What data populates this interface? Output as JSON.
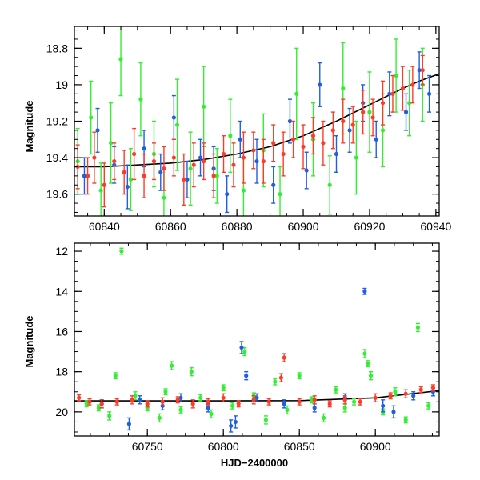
{
  "colors": {
    "green": "#33ee33",
    "blue": "#1f5fe0",
    "red": "#ff3b28",
    "model": "#000000"
  },
  "chart_data": [
    {
      "type": "scatter",
      "title": "",
      "xlabel": "",
      "ylabel": "Magnitude",
      "xlim": [
        60831,
        60941
      ],
      "ylim": [
        19.72,
        18.68
      ],
      "y_inverted": true,
      "x_ticks": [
        60840,
        60860,
        60880,
        60900,
        60920,
        60940
      ],
      "x_tick_labels": [
        "60840",
        "60860",
        "60880",
        "60900",
        "60920",
        "60940"
      ],
      "y_ticks": [
        18.8,
        19.0,
        19.2,
        19.4,
        19.6
      ],
      "y_tick_labels": [
        "18.8",
        "19",
        "19.2",
        "19.4",
        "19.6"
      ],
      "grid": false,
      "legend": "none",
      "model_curve": {
        "x": [
          60831,
          60840,
          60850,
          60860,
          60870,
          60880,
          60890,
          60900,
          60910,
          60920,
          60930,
          60935,
          60941
        ],
        "y": [
          19.45,
          19.45,
          19.44,
          19.43,
          19.41,
          19.38,
          19.34,
          19.28,
          19.2,
          19.11,
          19.02,
          18.98,
          18.94
        ]
      },
      "series": [
        {
          "color": "green",
          "x": [
            60832,
            60836,
            60839,
            60842,
            60845,
            60848,
            60851,
            60855,
            60858,
            60862,
            60866,
            60870,
            60874,
            60878,
            60882,
            60888,
            60893,
            60898,
            60903,
            60908,
            60912,
            60916,
            60920,
            60924,
            60928,
            60932,
            60936
          ],
          "y": [
            19.42,
            19.18,
            19.58,
            19.32,
            18.86,
            19.52,
            19.08,
            19.38,
            19.62,
            19.22,
            19.46,
            19.12,
            19.5,
            19.28,
            19.58,
            19.36,
            19.6,
            19.05,
            19.3,
            19.55,
            19.02,
            19.4,
            19.15,
            19.25,
            18.95,
            19.1,
            19.0
          ],
          "err": [
            0.18,
            0.2,
            0.15,
            0.22,
            0.2,
            0.17,
            0.2,
            0.18,
            0.16,
            0.25,
            0.2,
            0.22,
            0.15,
            0.2,
            0.18,
            0.2,
            0.15,
            0.25,
            0.2,
            0.16,
            0.25,
            0.2,
            0.22,
            0.2,
            0.2,
            0.18,
            0.2
          ]
        },
        {
          "color": "blue",
          "x": [
            60834,
            60838,
            60843,
            60847,
            60852,
            60857,
            60861,
            60865,
            60869,
            60873,
            60877,
            60881,
            60886,
            60891,
            60896,
            60901,
            60905,
            60910,
            60914,
            60918,
            60922,
            60926,
            60931,
            60935,
            60938
          ],
          "y": [
            19.5,
            19.25,
            19.44,
            19.56,
            19.35,
            19.48,
            19.18,
            19.52,
            19.4,
            19.46,
            19.6,
            19.3,
            19.42,
            19.55,
            19.2,
            19.47,
            19.0,
            19.38,
            19.25,
            19.1,
            19.3,
            19.05,
            19.15,
            18.92,
            19.05
          ],
          "err": [
            0.1,
            0.12,
            0.1,
            0.12,
            0.1,
            0.1,
            0.12,
            0.1,
            0.1,
            0.12,
            0.1,
            0.1,
            0.12,
            0.1,
            0.12,
            0.1,
            0.12,
            0.1,
            0.12,
            0.1,
            0.1,
            0.12,
            0.1,
            0.1,
            0.1
          ]
        },
        {
          "color": "red",
          "x": [
            60832,
            60835,
            60837,
            60840,
            60843,
            60846,
            60849,
            60852,
            60855,
            60858,
            60861,
            60864,
            60867,
            60870,
            60873,
            60876,
            60879,
            60882,
            60885,
            60888,
            60891,
            60894,
            60897,
            60900,
            60903,
            60906,
            60909,
            60912,
            60915,
            60918,
            60921,
            60924,
            60927,
            60930,
            60933,
            60936
          ],
          "y": [
            19.45,
            19.5,
            19.4,
            19.55,
            19.42,
            19.48,
            19.38,
            19.5,
            19.42,
            19.46,
            19.4,
            19.52,
            19.44,
            19.42,
            19.5,
            19.38,
            19.44,
            19.4,
            19.36,
            19.42,
            19.32,
            19.38,
            19.3,
            19.34,
            19.28,
            19.32,
            19.25,
            19.2,
            19.22,
            19.15,
            19.18,
            19.1,
            19.05,
            19.02,
            19.0,
            18.92
          ],
          "err": [
            0.12,
            0.1,
            0.14,
            0.12,
            0.1,
            0.12,
            0.14,
            0.12,
            0.1,
            0.12,
            0.1,
            0.14,
            0.12,
            0.1,
            0.12,
            0.1,
            0.12,
            0.14,
            0.1,
            0.12,
            0.1,
            0.12,
            0.1,
            0.12,
            0.1,
            0.12,
            0.1,
            0.12,
            0.1,
            0.12,
            0.1,
            0.12,
            0.1,
            0.12,
            0.1,
            0.08
          ]
        }
      ]
    },
    {
      "type": "scatter",
      "title": "",
      "xlabel": "HJD−2400000",
      "ylabel": "Magnitude",
      "xlim": [
        60702,
        60942
      ],
      "ylim": [
        21.2,
        11.6
      ],
      "y_inverted": true,
      "x_ticks": [
        60750,
        60800,
        60850,
        60900
      ],
      "x_tick_labels": [
        "60750",
        "60800",
        "60850",
        "60900"
      ],
      "y_ticks": [
        12,
        14,
        16,
        18,
        20
      ],
      "y_tick_labels": [
        "12",
        "14",
        "16",
        "18",
        "20"
      ],
      "grid": false,
      "legend": "none",
      "model_curve": {
        "x": [
          60702,
          60750,
          60800,
          60850,
          60900,
          60942
        ],
        "y": [
          19.45,
          19.45,
          19.45,
          19.44,
          19.3,
          18.94
        ]
      },
      "series": [
        {
          "color": "green",
          "x": [
            60710,
            60718,
            60725,
            60729,
            60733,
            60742,
            60750,
            60758,
            60762,
            60766,
            60772,
            60779,
            60785,
            60792,
            60800,
            60806,
            60814,
            60820,
            60828,
            60834,
            60842,
            60850,
            60858,
            60866,
            60874,
            60880,
            60886,
            60893,
            60895,
            60897,
            60905,
            60913,
            60920,
            60928,
            60935
          ],
          "y": [
            19.6,
            19.8,
            20.2,
            18.2,
            12.0,
            19.2,
            19.8,
            20.3,
            19.0,
            17.7,
            19.9,
            18.0,
            19.3,
            20.1,
            18.8,
            19.7,
            17.0,
            19.2,
            20.4,
            18.5,
            19.9,
            18.2,
            19.4,
            20.3,
            18.9,
            19.8,
            19.5,
            17.1,
            17.6,
            18.2,
            20.0,
            19.0,
            20.4,
            15.8,
            19.7
          ],
          "err": [
            0.15,
            0.15,
            0.2,
            0.15,
            0.15,
            0.2,
            0.15,
            0.2,
            0.15,
            0.2,
            0.15,
            0.2,
            0.15,
            0.2,
            0.15,
            0.15,
            0.2,
            0.15,
            0.2,
            0.15,
            0.2,
            0.15,
            0.15,
            0.2,
            0.15,
            0.2,
            0.15,
            0.2,
            0.15,
            0.2,
            0.15,
            0.2,
            0.15,
            0.2,
            0.15
          ]
        },
        {
          "color": "blue",
          "x": [
            60720,
            60738,
            60745,
            60760,
            60772,
            60790,
            60805,
            60808,
            60812,
            60815,
            60822,
            60840,
            60860,
            60880,
            60893,
            60905,
            60912,
            60925,
            60938
          ],
          "y": [
            19.6,
            20.6,
            19.4,
            19.7,
            19.3,
            19.8,
            20.7,
            20.5,
            16.8,
            18.2,
            19.3,
            19.6,
            19.8,
            19.3,
            14.0,
            19.7,
            20.0,
            19.2,
            19.0
          ],
          "err": [
            0.2,
            0.3,
            0.2,
            0.2,
            0.2,
            0.2,
            0.3,
            0.3,
            0.3,
            0.2,
            0.2,
            0.2,
            0.2,
            0.2,
            0.15,
            0.3,
            0.3,
            0.2,
            0.2
          ]
        },
        {
          "color": "red",
          "x": [
            60705,
            60712,
            60720,
            60730,
            60740,
            60750,
            60760,
            60770,
            60780,
            60790,
            60800,
            60810,
            60820,
            60830,
            60838,
            60840,
            60850,
            60860,
            60870,
            60880,
            60890,
            60900,
            60910,
            60920,
            60930,
            60938
          ],
          "y": [
            19.3,
            19.5,
            19.6,
            19.5,
            19.4,
            19.6,
            19.5,
            19.4,
            19.6,
            19.5,
            19.3,
            19.6,
            19.4,
            19.5,
            18.3,
            17.3,
            19.5,
            19.4,
            19.6,
            19.4,
            19.5,
            19.3,
            19.2,
            19.1,
            18.9,
            18.8
          ],
          "err": [
            0.15,
            0.15,
            0.2,
            0.15,
            0.2,
            0.15,
            0.2,
            0.15,
            0.2,
            0.15,
            0.2,
            0.15,
            0.2,
            0.15,
            0.2,
            0.2,
            0.15,
            0.2,
            0.15,
            0.2,
            0.15,
            0.2,
            0.15,
            0.2,
            0.15,
            0.15
          ]
        }
      ]
    }
  ]
}
